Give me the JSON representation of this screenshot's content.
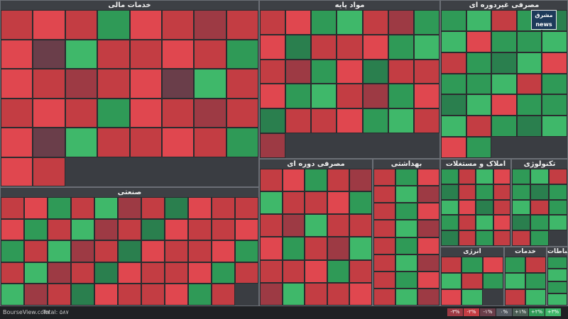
{
  "sectors": [
    {
      "id": "fin",
      "title": "خدمات مالی",
      "cells": 42,
      "pattern": "r1,r2,r1,g1,r2,r1,r3,r1,r2,r4,g2,r1"
    },
    {
      "id": "base",
      "title": "مواد پایه",
      "cells": 36,
      "pattern": "r1,r2,g1,g2,r1,r3,g1,r2,g3,r1"
    },
    {
      "id": "consumer",
      "title": "مصرفی غیردوره ای",
      "cells": 32,
      "pattern": "g1,g2,r1,g1,g3,g2,r2,g1"
    },
    {
      "id": "industry",
      "title": "صنعتی",
      "cells": 54,
      "pattern": "r1,r2,g1,r1,g2,r3,r1,g3,r2,r1"
    },
    {
      "id": "cyclic",
      "title": "مصرفی دوره ای",
      "cells": 30,
      "pattern": "r1,r2,g1,r1,r3,g2,r1"
    },
    {
      "id": "health",
      "title": "بهداشتی",
      "cells": 24,
      "pattern": "r1,g1,r2,r1,g2,r3"
    },
    {
      "id": "property",
      "title": "املاک و مستغلات",
      "cells": 20,
      "pattern": "g1,r1,g2,r2,g3,r1"
    },
    {
      "id": "tech",
      "title": "تکنولوژی",
      "cells": 14,
      "pattern": "g1,g2,r1,g1,g3"
    },
    {
      "id": "energy",
      "title": "انرژی",
      "cells": 8,
      "pattern": "r1,g1,r2,g2"
    },
    {
      "id": "welfare",
      "title": "خدمات رفاهی",
      "cells": 6,
      "pattern": "g1,r1,g2"
    },
    {
      "id": "comm",
      "title": "ارتباطات",
      "cells": 4,
      "pattern": "g1,g2"
    }
  ],
  "footer": {
    "brand": "BourseView.com",
    "total": "Total: ۵۸۷"
  },
  "legend": [
    "-۳%",
    "-۲%",
    "-۱%",
    "۰%",
    "+۱%",
    "+۲%",
    "+۳%"
  ],
  "logo": {
    "line1": "مشرق",
    "line2": "news"
  }
}
